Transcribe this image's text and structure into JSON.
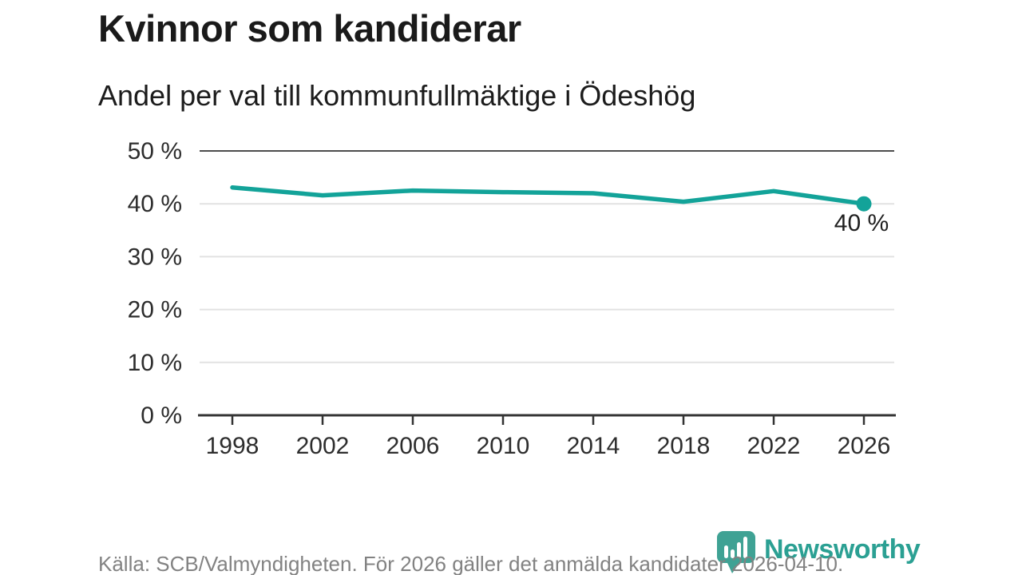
{
  "header": {
    "title": "Kvinnor som kandiderar",
    "subtitle": "Andel per val till kommunfullmäktige i Ödeshög"
  },
  "chart_data": {
    "type": "line",
    "title": "Kvinnor som kandiderar",
    "subtitle": "Andel per val till kommunfullmäktige i Ödeshög",
    "categories": [
      "1998",
      "2002",
      "2006",
      "2010",
      "2014",
      "2018",
      "2022",
      "2026"
    ],
    "values": [
      43.1,
      41.6,
      42.5,
      42.2,
      42.0,
      40.4,
      42.4,
      40.0
    ],
    "xlabel": "",
    "ylabel": "",
    "ylim": [
      0,
      50
    ],
    "yticks": [
      0,
      10,
      20,
      30,
      40,
      50
    ],
    "ytick_labels": [
      "0 %",
      "10 %",
      "20 %",
      "30 %",
      "40 %",
      "50 %"
    ],
    "grid": true,
    "legend": "none",
    "end_label": "40 %",
    "line_color": "#13a399",
    "top_gridline_color": "#4d4d4d",
    "gridline_color": "#e2e2e2",
    "axis_color": "#333333",
    "label_color": "#2d2d2d"
  },
  "footer": {
    "source": "Källa: SCB/Valmyndigheten. För 2026 gäller det anmälda kandidater 2026-04-10.",
    "brand": "Newsworthy"
  },
  "colors": {
    "accent": "#13a399",
    "brand_teal": "#2ba093",
    "text_dark": "#1a1a1a",
    "text_gray": "#828282"
  }
}
